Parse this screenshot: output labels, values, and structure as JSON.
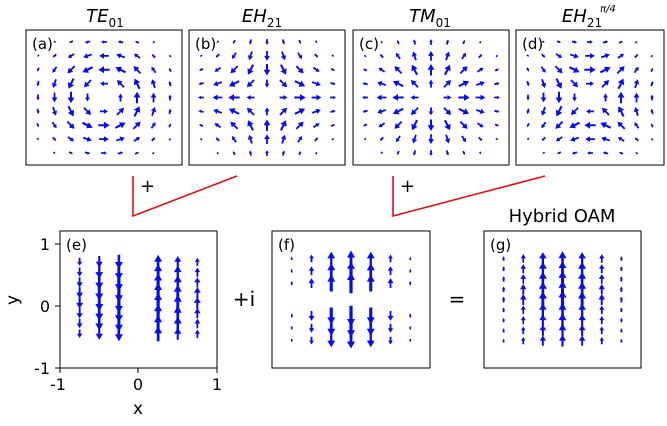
{
  "top_titles": [
    {
      "base": "TE",
      "sub": "01",
      "sup": ""
    },
    {
      "base": "EH",
      "sub": "21",
      "sup": ""
    },
    {
      "base": "TM",
      "sub": "01",
      "sup": ""
    },
    {
      "base": "EH",
      "sub": "21",
      "sup": "π/4"
    }
  ],
  "panel_labels": [
    "(a)",
    "(b)",
    "(c)",
    "(d)",
    "(e)",
    "(f)",
    "(g)"
  ],
  "operators": {
    "plus_ab": "+",
    "plus_cd": "+",
    "plus_i": "+i",
    "equals": "="
  },
  "hybrid_title": "Hybrid OAM",
  "axes": {
    "xlabel": "x",
    "ylabel": "y",
    "xticks": [
      "-1",
      "0",
      "1"
    ],
    "yticks": [
      "1",
      "0",
      "-1"
    ]
  },
  "colors": {
    "arrow": "#0a0af0",
    "connector": "#e01010"
  },
  "fields": {
    "a": "azimuthal-vortex",
    "b": "hybrid-hyperbolic",
    "c": "radial",
    "d": "hybrid-rotated",
    "e": "vertical-left-down-right-up",
    "f": "vertical-top-up-bottom-down",
    "g": "vertical-sum"
  }
}
